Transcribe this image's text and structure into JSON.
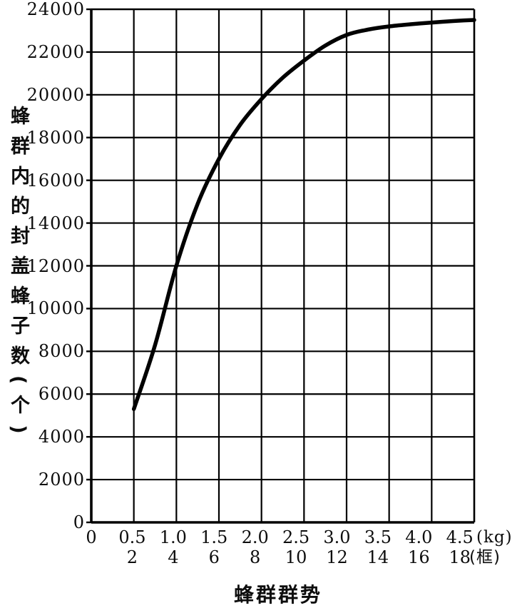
{
  "chart_data": {
    "type": "line",
    "title": "",
    "grid": true,
    "x_axis": {
      "label": "蜂群群势",
      "unit_primary_label": "(kg)",
      "unit_secondary_label": "(框)",
      "range": [
        0,
        4.5
      ],
      "ticks_kg": [
        0,
        0.5,
        1,
        1.5,
        2,
        2.5,
        3,
        3.5,
        4,
        4.5
      ],
      "tick_labels_kg": [
        "0",
        "0.5",
        "1.0",
        "1.5",
        "2.0",
        "2.5",
        "3.0",
        "3.5",
        "4.0",
        "4.5"
      ],
      "tick_positions_frames": [
        0.5,
        1,
        1.5,
        2,
        2.5,
        3,
        3.5,
        4,
        4.5
      ],
      "tick_labels_frames": [
        "2",
        "4",
        "6",
        "8",
        "10",
        "12",
        "14",
        "16",
        "18"
      ]
    },
    "y_axis": {
      "label": "蜂群内的封盖蜂子数(个)",
      "range": [
        0,
        24000
      ],
      "ticks": [
        0,
        2000,
        4000,
        6000,
        8000,
        10000,
        12000,
        14000,
        16000,
        18000,
        20000,
        22000,
        24000
      ],
      "tick_labels": [
        "0",
        "2000",
        "4000",
        "6000",
        "8000",
        "10000",
        "12000",
        "14000",
        "16000",
        "18000",
        "20000",
        "22000",
        "24000"
      ]
    },
    "series": [
      {
        "x": [
          0.5,
          0.75,
          1.0,
          1.25,
          1.5,
          1.75,
          2.0,
          2.25,
          2.5,
          2.75,
          3.0,
          3.25,
          3.5,
          3.75,
          4.0,
          4.25,
          4.5
        ],
        "y": [
          5300,
          8300,
          12000,
          14900,
          17000,
          18600,
          19800,
          20800,
          21600,
          22300,
          22800,
          23050,
          23200,
          23300,
          23380,
          23450,
          23500
        ]
      }
    ],
    "line_color": "#000000",
    "background_color": "#ffffff"
  }
}
